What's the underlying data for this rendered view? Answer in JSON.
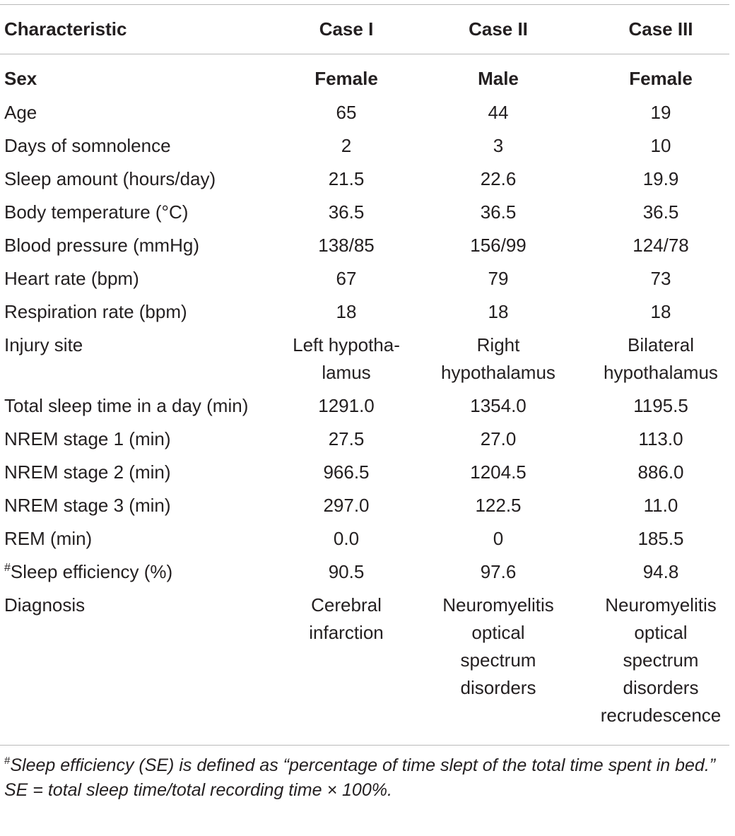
{
  "header": [
    "Characteristic",
    "Case I",
    "Case II",
    "Case III"
  ],
  "sex_row": [
    "Sex",
    "Female",
    "Male",
    "Female"
  ],
  "rows": [
    [
      "Age",
      "65",
      "44",
      "19"
    ],
    [
      "Days of somnolence",
      "2",
      "3",
      "10"
    ],
    [
      "Sleep amount (hours/day)",
      "21.5",
      "22.6",
      "19.9"
    ],
    [
      "Body temperature (°C)",
      "36.5",
      "36.5",
      "36.5"
    ],
    [
      "Blood pressure (mmHg)",
      "138/85",
      "156/99",
      "124/78"
    ],
    [
      "Heart rate (bpm)",
      "67",
      "79",
      "73"
    ],
    [
      "Respiration rate (bpm)",
      "18",
      "18",
      "18"
    ],
    [
      "Injury site",
      [
        "Left hypotha-",
        "lamus"
      ],
      [
        "Right",
        "hypothalamus"
      ],
      [
        "Bilateral",
        "hypothalamus"
      ]
    ],
    [
      "Total sleep time in a day (min)",
      "1291.0",
      "1354.0",
      "1195.5"
    ],
    [
      "NREM stage 1 (min)",
      "27.5",
      "27.0",
      "113.0"
    ],
    [
      "NREM stage 2 (min)",
      "966.5",
      "1204.5",
      "886.0"
    ],
    [
      "NREM stage 3 (min)",
      "297.0",
      "122.5",
      "11.0"
    ],
    [
      "REM (min)",
      "0.0",
      "0",
      "185.5"
    ],
    [
      "Sleep efficiency (%)",
      "90.5",
      "97.6",
      "94.8"
    ],
    [
      "Diagnosis",
      [
        "Cerebral",
        "infarction"
      ],
      [
        "Neuromyelitis",
        "optical",
        "spectrum",
        "disorders"
      ],
      [
        "Neuromyelitis",
        "optical",
        "spectrum",
        "disorders",
        "recrudescence"
      ]
    ]
  ],
  "footnote_mark": "#",
  "footnote": {
    "line1": "Sleep efficiency (SE) is defined as “percentage of time slept of the total time spent in bed.”",
    "line2": "SE = total sleep time/total recording time × 100%."
  }
}
